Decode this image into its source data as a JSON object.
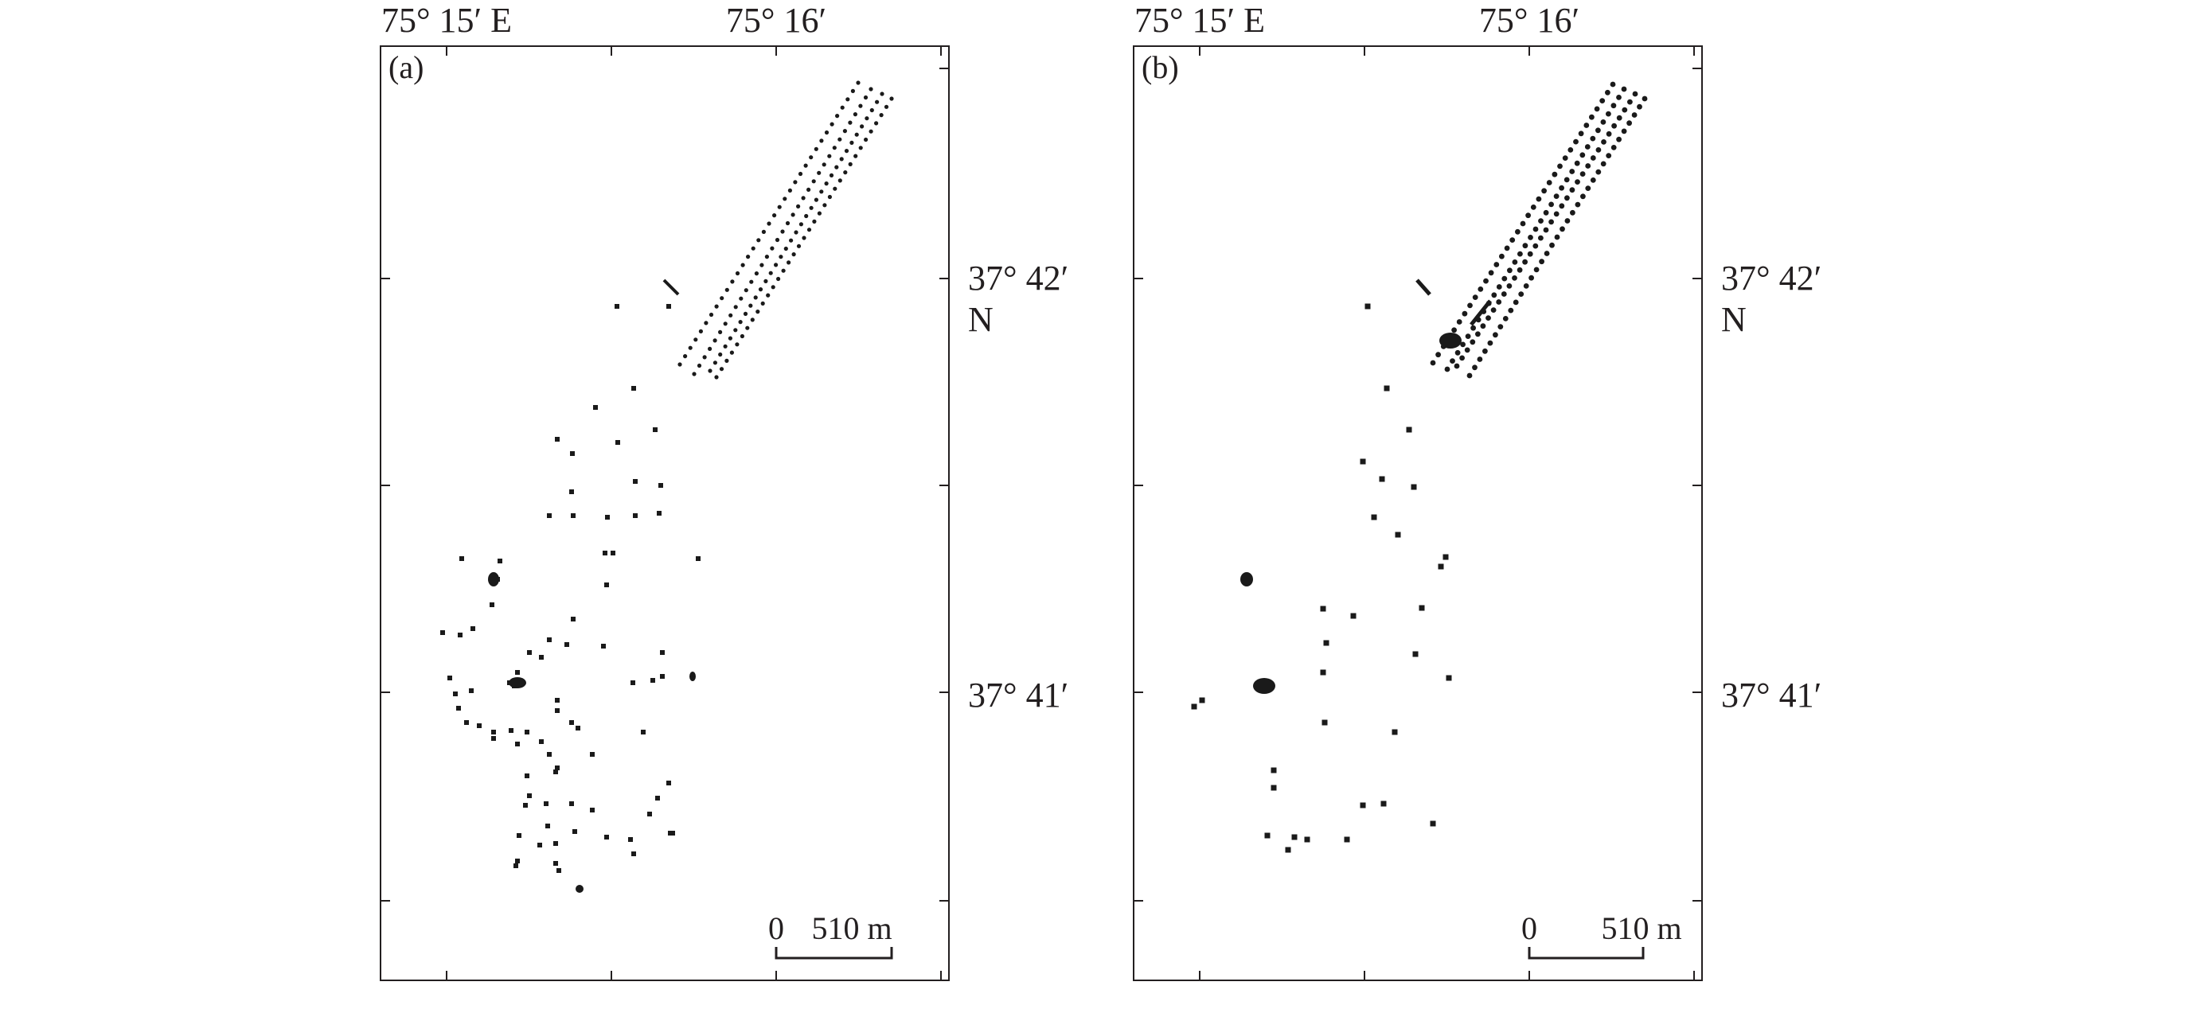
{
  "panels": [
    {
      "id": "a",
      "label": "(a)",
      "lon_labels": [
        "75° 15′ E",
        "75° 16′"
      ],
      "lat_labels": [
        "37° 42′",
        "37° 41′"
      ],
      "lat_unit": "N",
      "scale": {
        "zero": "0",
        "distance": "510 m"
      }
    },
    {
      "id": "b",
      "label": "(b)",
      "lon_labels": [
        "75° 15′ E",
        "75° 16′"
      ],
      "lat_labels": [
        "37° 42′",
        "37° 41′"
      ],
      "lat_unit": "N",
      "scale": {
        "zero": "0",
        "distance": "510 m"
      }
    }
  ],
  "style": {
    "frame_color": "#231f20",
    "feature_color": "#1a1a1a",
    "background": "#ffffff"
  }
}
